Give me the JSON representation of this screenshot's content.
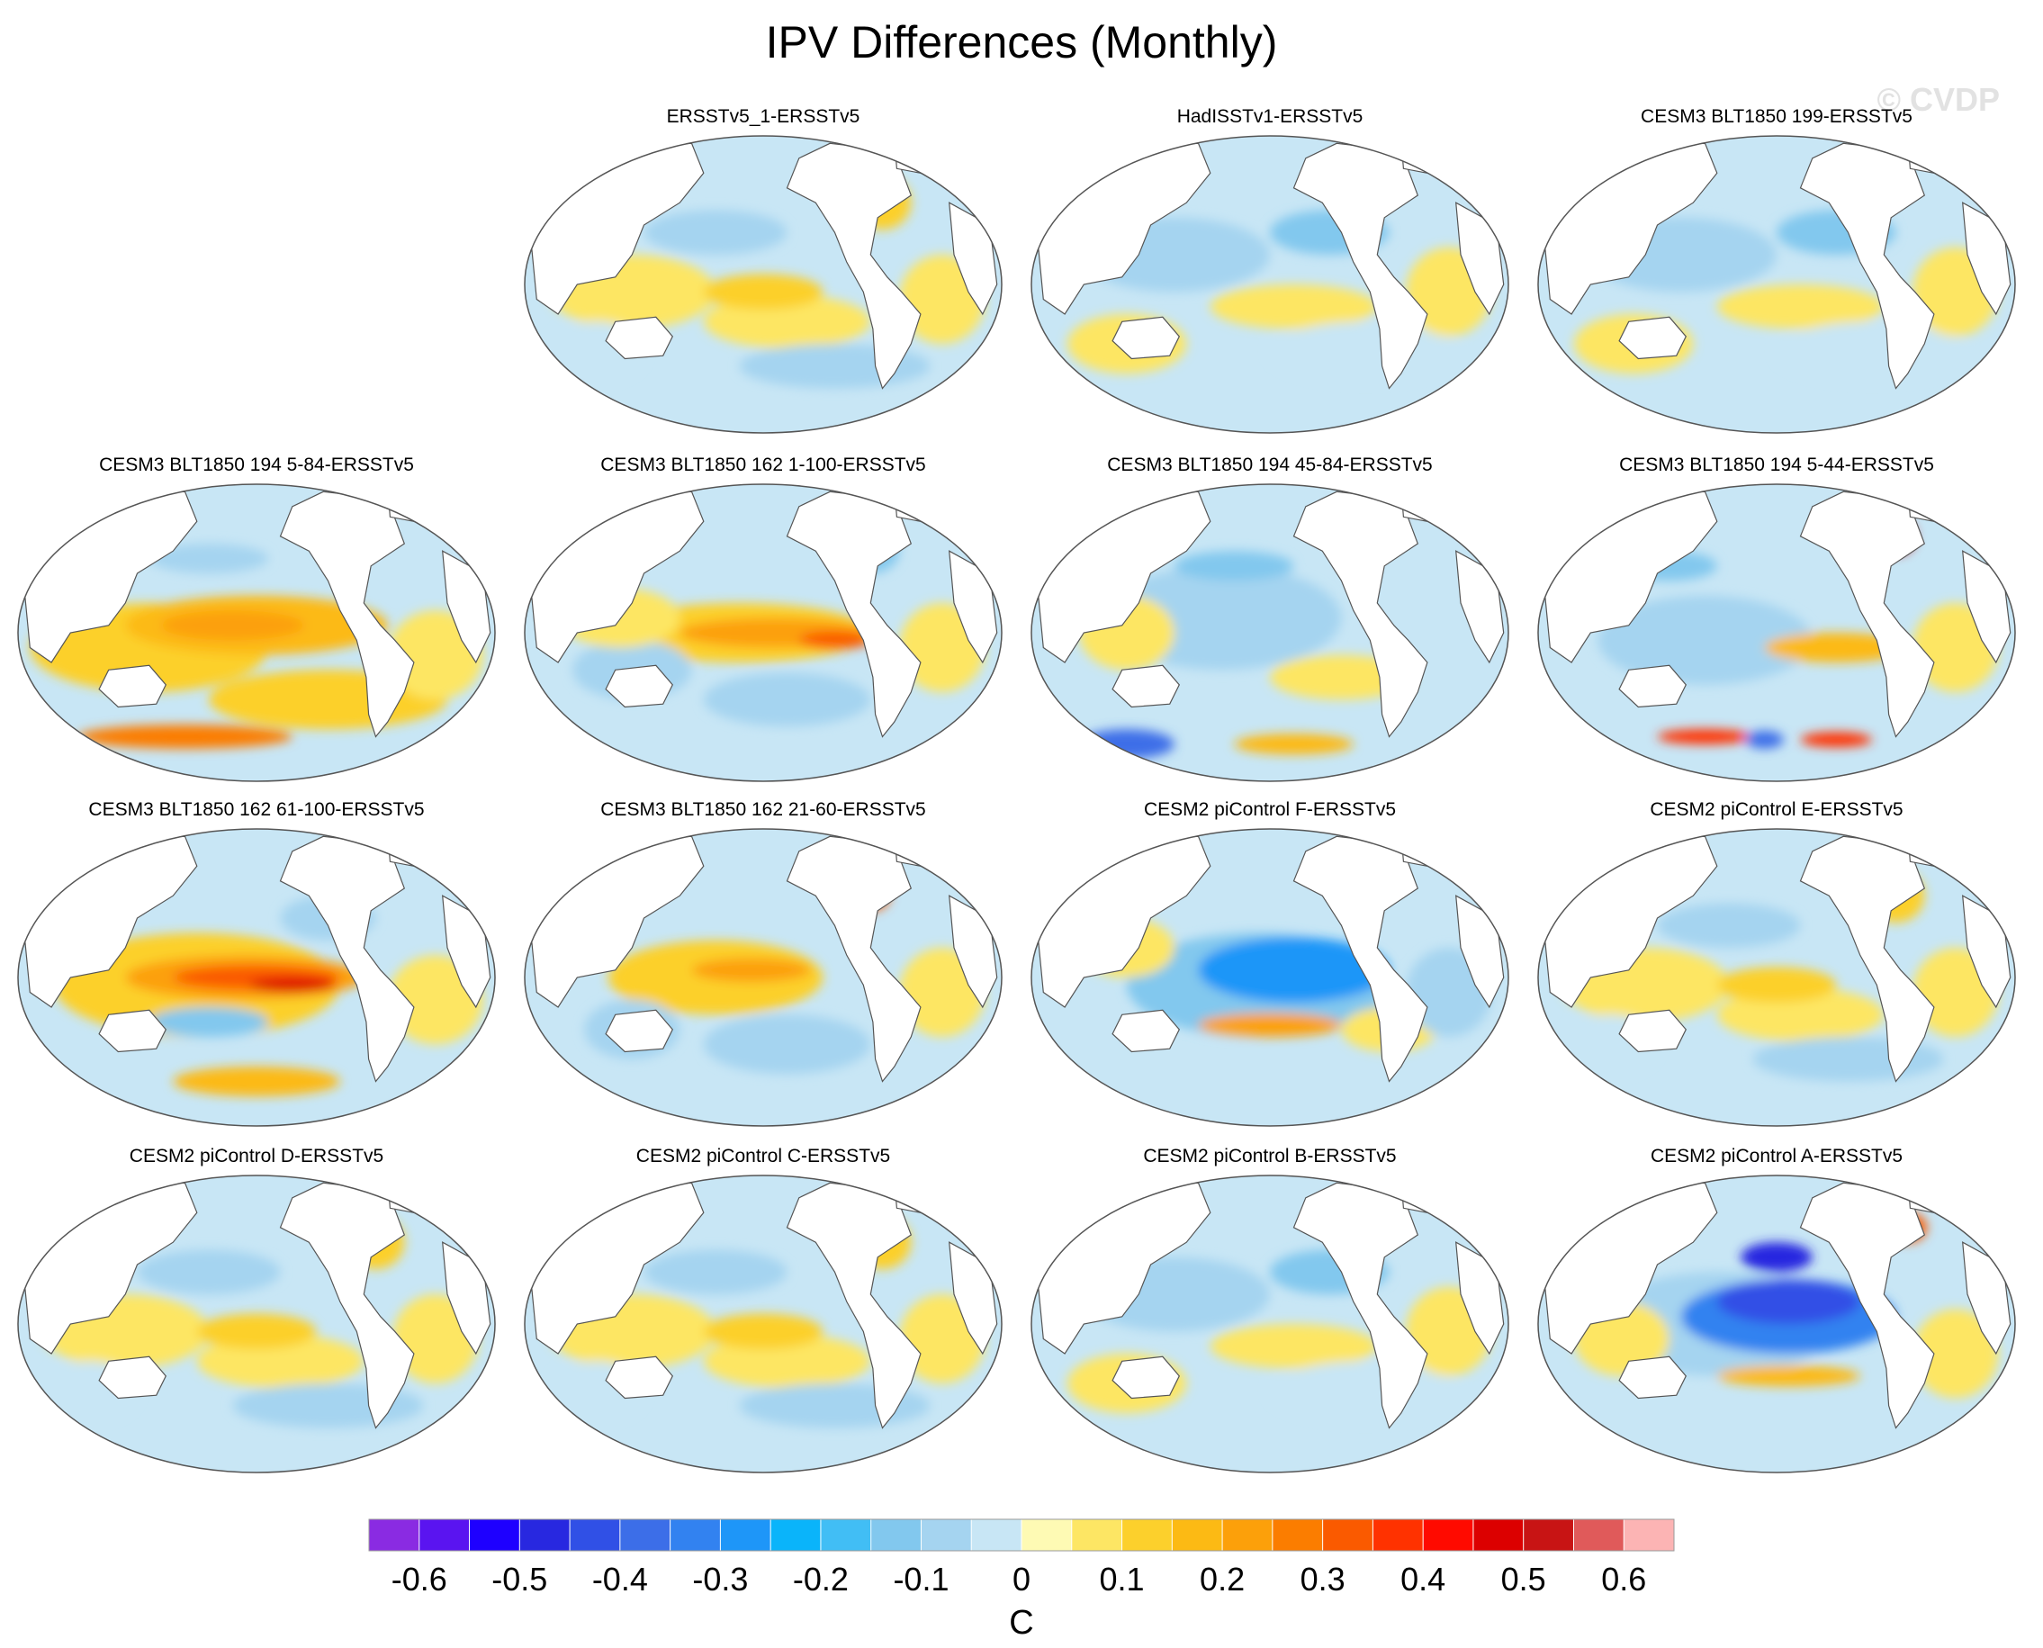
{
  "title": "IPV Differences (Monthly)",
  "watermark": "© CVDP",
  "chart_data": {
    "type": "heatmap",
    "title": "IPV Differences (Monthly)",
    "projection": "Robinson (Pacific-centered)",
    "panels": [
      {
        "title": "ERSSTv5_1-ERSSTv5",
        "pattern": "weak-positive"
      },
      {
        "title": "HadISSTv1-ERSSTv5",
        "pattern": "weak-mixed"
      },
      {
        "title": "CESM3 BLT1850 199-ERSSTv5",
        "pattern": "weak-mixed"
      },
      {
        "title": "CESM3 BLT1850 194 5-84-ERSSTv5",
        "pattern": "warm-broad"
      },
      {
        "title": "CESM3 BLT1850 162 1-100-ERSSTv5",
        "pattern": "warm-tropical"
      },
      {
        "title": "CESM3 BLT1850 194 45-84-ERSSTv5",
        "pattern": "cool-mixed"
      },
      {
        "title": "CESM3 BLT1850 194 5-44-ERSSTv5",
        "pattern": "mixed-southern"
      },
      {
        "title": "CESM3 BLT1850 162 61-100-ERSSTv5",
        "pattern": "strong-warm"
      },
      {
        "title": "CESM3 BLT1850 162 21-60-ERSSTv5",
        "pattern": "warm-moderate"
      },
      {
        "title": "CESM2 piControl F-ERSSTv5",
        "pattern": "cool-tropical"
      },
      {
        "title": "CESM2 piControl E-ERSSTv5",
        "pattern": "weak-positive"
      },
      {
        "title": "CESM2 piControl D-ERSSTv5",
        "pattern": "weak-positive"
      },
      {
        "title": "CESM2 piControl C-ERSSTv5",
        "pattern": "weak-positive"
      },
      {
        "title": "CESM2 piControl B-ERSSTv5",
        "pattern": "weak-mixed"
      },
      {
        "title": "CESM2 piControl A-ERSSTv5",
        "pattern": "strong-cool"
      }
    ],
    "colorbar": {
      "label": "C",
      "levels": [
        -0.65,
        -0.6,
        -0.55,
        -0.5,
        -0.45,
        -0.4,
        -0.35,
        -0.3,
        -0.25,
        -0.2,
        -0.15,
        -0.1,
        -0.05,
        0,
        0.05,
        0.1,
        0.15,
        0.2,
        0.25,
        0.3,
        0.35,
        0.4,
        0.45,
        0.5,
        0.55,
        0.6,
        0.65
      ],
      "tick_labels": [
        "-0.6",
        "-0.5",
        "-0.4",
        "-0.3",
        "-0.2",
        "-0.1",
        "0",
        "0.1",
        "0.2",
        "0.3",
        "0.4",
        "0.5",
        "0.6"
      ],
      "colors": [
        "#8a2be2",
        "#5a14f0",
        "#1e00ff",
        "#2828e0",
        "#3050e6",
        "#3c6ee8",
        "#3282f0",
        "#1e96f8",
        "#0ab4fa",
        "#41bef5",
        "#82c8ee",
        "#a5d4f0",
        "#c8e6f5",
        "#fefab4",
        "#fde664",
        "#fcd02c",
        "#fcba14",
        "#fca00a",
        "#fb7d00",
        "#fa5a00",
        "#ff3200",
        "#ff0a00",
        "#dc0000",
        "#c81414",
        "#e05a5a",
        "#fcb4b4"
      ]
    }
  }
}
